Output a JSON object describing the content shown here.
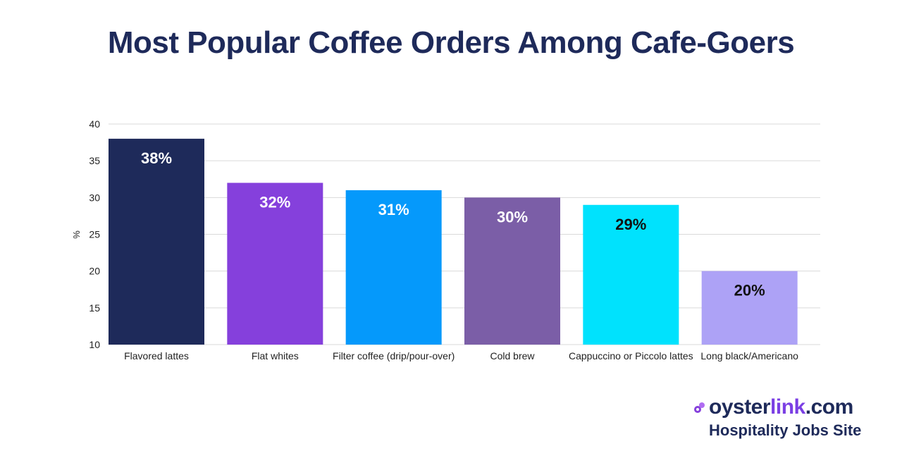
{
  "chart_data": {
    "type": "bar",
    "title": "Most Popular Coffee Orders Among Cafe-Goers",
    "xlabel": "",
    "ylabel": "%",
    "ylim": [
      10,
      40
    ],
    "yticks": [
      10,
      15,
      20,
      25,
      30,
      35,
      40
    ],
    "grid": true,
    "categories": [
      "Flavored lattes",
      "Flat whites",
      "Filter coffee (drip/pour-over)",
      "Cold brew",
      "Cappuccino or Piccolo lattes",
      "Long black/Americano"
    ],
    "values": [
      38,
      32,
      31,
      30,
      29,
      20
    ],
    "data_labels": [
      "38%",
      "32%",
      "31%",
      "30%",
      "29%",
      "20%"
    ],
    "colors": [
      "#1e2a5a",
      "#8540dc",
      "#0599fb",
      "#7b5ea7",
      "#00e2fd",
      "#ada2f6"
    ],
    "label_colors": [
      "#ffffff",
      "#ffffff",
      "#ffffff",
      "#ffffff",
      "#111111",
      "#111111"
    ]
  },
  "brand": {
    "name_part1": "oyster",
    "name_part2": "link",
    "name_part3": ".com",
    "tagline": "Hospitality Jobs Site",
    "icon": "oyster-logo-icon"
  }
}
